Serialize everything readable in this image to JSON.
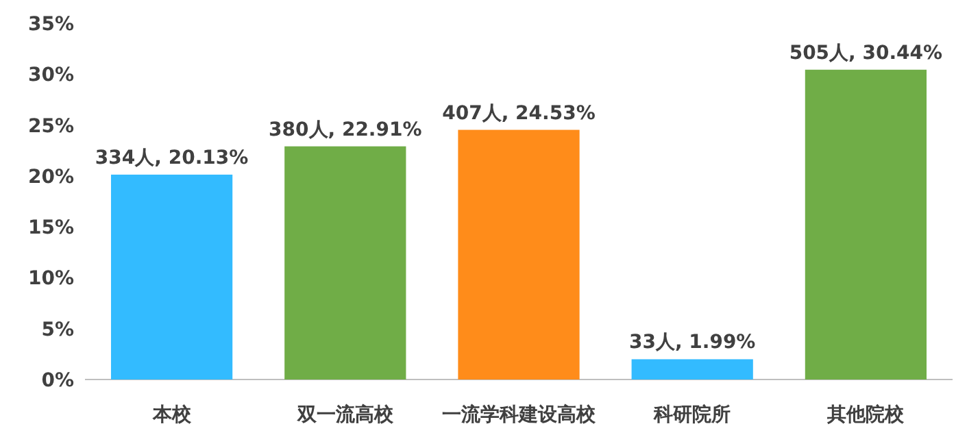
{
  "chart_data": {
    "type": "bar",
    "categories": [
      "本校",
      "双一流高校",
      "一流学科建设高校",
      "科研院所",
      "其他院校"
    ],
    "values": [
      20.13,
      22.91,
      24.53,
      1.99,
      30.44
    ],
    "colors": [
      "#33bbff",
      "#70ad47",
      "#ff8c1a",
      "#33bbff",
      "#70ad47"
    ],
    "value_labels": [
      "334人, 20.13%",
      "380人, 22.91%",
      "407人, 24.53%",
      "33人, 1.99%",
      "505人, 30.44%"
    ],
    "ylim": [
      0,
      35
    ],
    "yticks": [
      {
        "value": 0,
        "label": "0%"
      },
      {
        "value": 5,
        "label": "5%"
      },
      {
        "value": 10,
        "label": "10%"
      },
      {
        "value": 15,
        "label": "15%"
      },
      {
        "value": 20,
        "label": "20%"
      },
      {
        "value": 25,
        "label": "25%"
      },
      {
        "value": 30,
        "label": "30%"
      },
      {
        "value": 35,
        "label": "35%"
      }
    ]
  }
}
